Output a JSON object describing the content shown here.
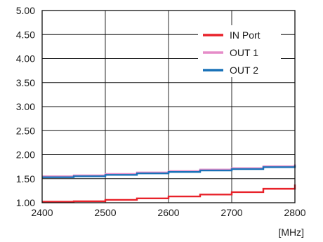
{
  "chart_data": {
    "type": "line",
    "x_unit_label": "[MHz]",
    "xlim": [
      2400,
      2800
    ],
    "ylim": [
      1.0,
      5.0
    ],
    "x_ticks": [
      2400,
      2500,
      2600,
      2700,
      2800
    ],
    "x_tick_labels": [
      "2400",
      "2500",
      "2600",
      "2700",
      "2800"
    ],
    "y_ticks": [
      1.0,
      1.5,
      2.0,
      2.5,
      3.0,
      3.5,
      4.0,
      4.5,
      5.0
    ],
    "y_tick_labels": [
      "1.00",
      "1.50",
      "2.00",
      "2.50",
      "3.00",
      "3.50",
      "4.00",
      "4.50",
      "5.00"
    ],
    "grid": true,
    "legend_position": "top-right",
    "series": [
      {
        "name": "IN Port",
        "color": "#e8222a",
        "x": [
          2400,
          2450,
          2500,
          2550,
          2600,
          2650,
          2700,
          2750,
          2800
        ],
        "y": [
          1.02,
          1.03,
          1.06,
          1.09,
          1.13,
          1.17,
          1.22,
          1.29,
          1.38
        ]
      },
      {
        "name": "OUT 1",
        "color": "#e58cc8",
        "x": [
          2400,
          2450,
          2500,
          2550,
          2600,
          2650,
          2700,
          2750,
          2800
        ],
        "y": [
          1.55,
          1.57,
          1.6,
          1.63,
          1.66,
          1.69,
          1.72,
          1.76,
          1.8
        ]
      },
      {
        "name": "OUT 2",
        "color": "#1a72b8",
        "x": [
          2400,
          2450,
          2500,
          2550,
          2600,
          2650,
          2700,
          2750,
          2800
        ],
        "y": [
          1.53,
          1.55,
          1.58,
          1.61,
          1.64,
          1.67,
          1.7,
          1.74,
          1.78
        ]
      }
    ]
  }
}
